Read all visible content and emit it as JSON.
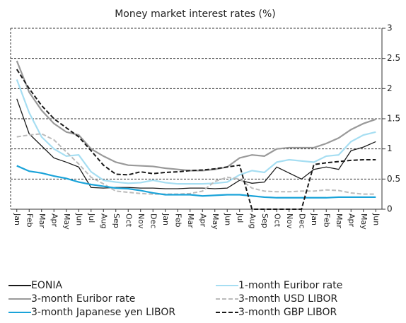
{
  "chart_data": {
    "type": "line",
    "title": "Money market interest rates (%)",
    "categories": [
      "Jan",
      "Feb",
      "Mar",
      "Apr",
      "May",
      "Jun",
      "Jul",
      "Aug",
      "Sep",
      "Oct",
      "Nov",
      "Dec",
      "Jan",
      "Feb",
      "Mar",
      "Apr",
      "May",
      "Jun",
      "Jul",
      "Aug",
      "Sep",
      "Oct",
      "Nov",
      "Dec",
      "Jan",
      "Feb",
      "Mar",
      "Apr",
      "May",
      "Jun"
    ],
    "ylim": [
      0,
      3
    ],
    "yticks": [
      0,
      0.5,
      1,
      1.5,
      2,
      2.5,
      3
    ],
    "grid": true,
    "legend": "bottom",
    "series": [
      {
        "name": "EONIA",
        "color": "#1a1a1a",
        "dashed": false,
        "values": [
          1.83,
          1.25,
          1.05,
          0.85,
          0.78,
          0.7,
          0.36,
          0.35,
          0.36,
          0.36,
          0.35,
          0.35,
          0.34,
          0.34,
          0.35,
          0.35,
          0.34,
          0.35,
          0.48,
          0.43,
          0.45,
          0.7,
          0.6,
          0.5,
          0.66,
          0.7,
          0.66,
          0.97,
          1.03,
          1.12
        ]
      },
      {
        "name": "1-month Euribor rate",
        "color": "#a6def2",
        "dashed": false,
        "values": [
          2.15,
          1.6,
          1.2,
          1.0,
          0.88,
          0.9,
          0.62,
          0.48,
          0.45,
          0.43,
          0.44,
          0.48,
          0.44,
          0.42,
          0.42,
          0.42,
          0.43,
          0.45,
          0.57,
          0.64,
          0.61,
          0.78,
          0.82,
          0.8,
          0.78,
          0.88,
          0.9,
          1.12,
          1.23,
          1.28
        ]
      },
      {
        "name": "3-month Euribor rate",
        "color": "#999999",
        "dashed": false,
        "values": [
          2.46,
          1.94,
          1.64,
          1.42,
          1.28,
          1.23,
          1.0,
          0.88,
          0.78,
          0.73,
          0.72,
          0.71,
          0.68,
          0.66,
          0.64,
          0.64,
          0.66,
          0.7,
          0.85,
          0.9,
          0.88,
          1.0,
          1.02,
          1.02,
          1.02,
          1.09,
          1.18,
          1.32,
          1.42,
          1.49
        ]
      },
      {
        "name": "3-month USD LIBOR",
        "color": "#bbbbbb",
        "dashed": true,
        "values": [
          1.2,
          1.23,
          1.25,
          1.15,
          0.95,
          0.75,
          0.53,
          0.42,
          0.3,
          0.28,
          0.26,
          0.25,
          0.25,
          0.25,
          0.26,
          0.3,
          0.46,
          0.53,
          0.5,
          0.35,
          0.3,
          0.29,
          0.29,
          0.3,
          0.3,
          0.32,
          0.31,
          0.27,
          0.25,
          0.25
        ]
      },
      {
        "name": "3-month Japanese yen LIBOR",
        "color": "#1aa3d9",
        "dashed": false,
        "values": [
          0.72,
          0.63,
          0.6,
          0.55,
          0.51,
          0.45,
          0.41,
          0.38,
          0.35,
          0.34,
          0.31,
          0.27,
          0.24,
          0.24,
          0.24,
          0.22,
          0.23,
          0.24,
          0.24,
          0.22,
          0.2,
          0.19,
          0.19,
          0.19,
          0.19,
          0.19,
          0.2,
          0.2,
          0.2,
          0.2
        ]
      },
      {
        "name": "3-month GBP LIBOR",
        "color": "#1a1a1a",
        "dashed": true,
        "values": [
          2.32,
          2.0,
          1.72,
          1.5,
          1.35,
          1.2,
          0.97,
          0.73,
          0.58,
          0.57,
          0.62,
          0.59,
          0.61,
          0.62,
          0.64,
          0.65,
          0.67,
          0.7,
          0.73,
          0,
          0,
          0,
          0,
          0,
          0.74,
          0.77,
          0.79,
          0.81,
          0.82,
          0.82
        ]
      }
    ]
  }
}
